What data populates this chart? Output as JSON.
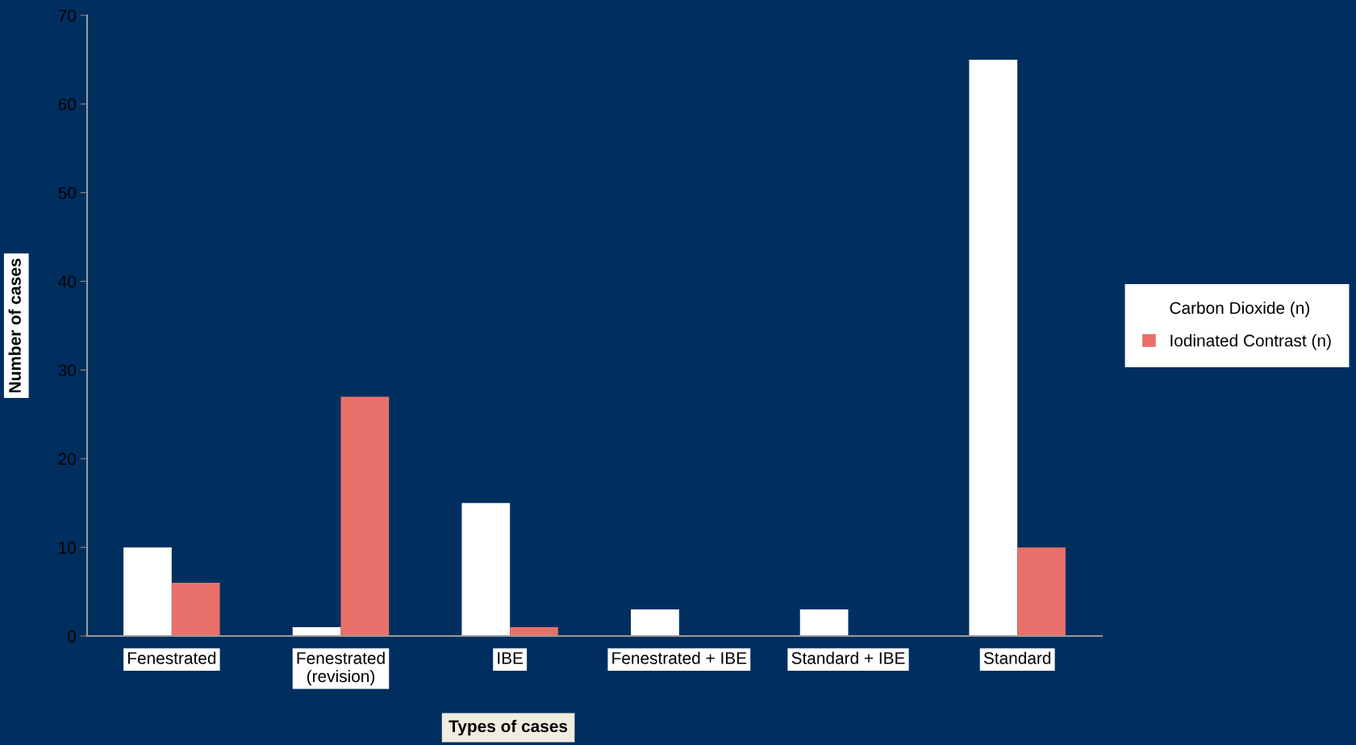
{
  "chart_data": {
    "type": "bar",
    "xlabel": "Types of cases",
    "ylabel": "Number of cases",
    "categories": [
      "Fenestrated",
      "Fenestrated\n(revision)",
      "IBE",
      "Fenestrated + IBE",
      "Standard + IBE",
      "Standard"
    ],
    "series": [
      {
        "name": "Carbon Dioxide (n)",
        "color": "#ffffff",
        "values": [
          10,
          1,
          15,
          3,
          3,
          65
        ]
      },
      {
        "name": "Iodinated Contrast (n)",
        "color": "#e8706a",
        "values": [
          6,
          27,
          1,
          0,
          0,
          10
        ]
      }
    ],
    "ylim": [
      0,
      70
    ],
    "yticks": [
      0,
      10,
      20,
      30,
      40,
      50,
      60,
      70
    ],
    "grid": false,
    "legend": "right"
  }
}
